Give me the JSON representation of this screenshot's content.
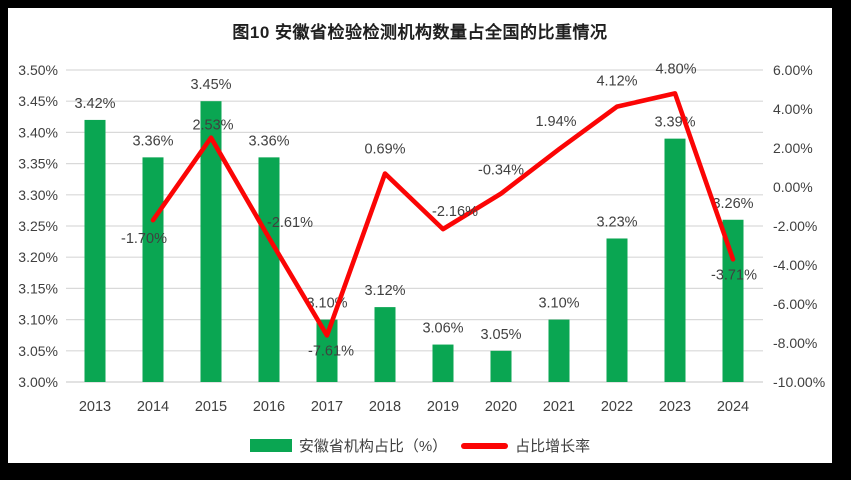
{
  "window": {
    "frame_color": "#000000",
    "canvas_color": "#FFFFFF"
  },
  "chart_data": {
    "type": "combo",
    "title": "图10 安徽省检验检测机构数量占全国的比重情况",
    "categories": [
      "2013",
      "2014",
      "2015",
      "2016",
      "2017",
      "2018",
      "2019",
      "2020",
      "2021",
      "2022",
      "2023",
      "2024"
    ],
    "series": [
      {
        "name": "安徽省机构占比（%）",
        "type": "bar",
        "axis": "left",
        "color": "#0AA652",
        "values": [
          3.42,
          3.36,
          3.45,
          3.36,
          3.1,
          3.12,
          3.06,
          3.05,
          3.1,
          3.23,
          3.39,
          3.26
        ],
        "labels": [
          "3.42%",
          "3.36%",
          "3.45%",
          "3.36%",
          "3.10%",
          "3.12%",
          "3.06%",
          "3.05%",
          "3.10%",
          "3.23%",
          "3.39%",
          "3.26%"
        ]
      },
      {
        "name": "占比增长率",
        "type": "line",
        "axis": "right",
        "color": "#FB0505",
        "values": [
          null,
          -1.7,
          2.53,
          -2.61,
          -7.61,
          0.69,
          -2.16,
          -0.34,
          1.94,
          4.12,
          4.8,
          -3.71
        ],
        "labels": [
          null,
          "-1.70%",
          "2.53%",
          "-2.61%",
          "-7.61%",
          "0.69%",
          "-2.16%",
          "-0.34%",
          "1.94%",
          "4.12%",
          "4.80%",
          "-3.71%"
        ],
        "label_offsets": [
          null,
          [
            -9,
            18
          ],
          [
            2,
            -13
          ],
          [
            21,
            -16
          ],
          [
            4,
            15
          ],
          [
            0,
            -25
          ],
          [
            12,
            -18
          ],
          [
            0,
            -24
          ],
          [
            -3,
            -28
          ],
          [
            0,
            -26
          ],
          [
            1,
            -25
          ],
          [
            1,
            15
          ]
        ]
      }
    ],
    "left_axis": {
      "min": 3.0,
      "max": 3.5,
      "ticks": [
        "3.50%",
        "3.45%",
        "3.40%",
        "3.35%",
        "3.30%",
        "3.25%",
        "3.20%",
        "3.15%",
        "3.10%",
        "3.05%",
        "3.00%"
      ]
    },
    "right_axis": {
      "min": -10.0,
      "max": 6.0,
      "ticks": [
        "6.00%",
        "4.00%",
        "2.00%",
        "0.00%",
        "-2.00%",
        "-4.00%",
        "-6.00%",
        "-8.00%",
        "-10.00%"
      ]
    },
    "grid": true,
    "legend_position": "bottom",
    "colors": {
      "gridline": "#D9D9D9",
      "label_text": "#404040",
      "title_text": "#1F1F1F"
    }
  }
}
